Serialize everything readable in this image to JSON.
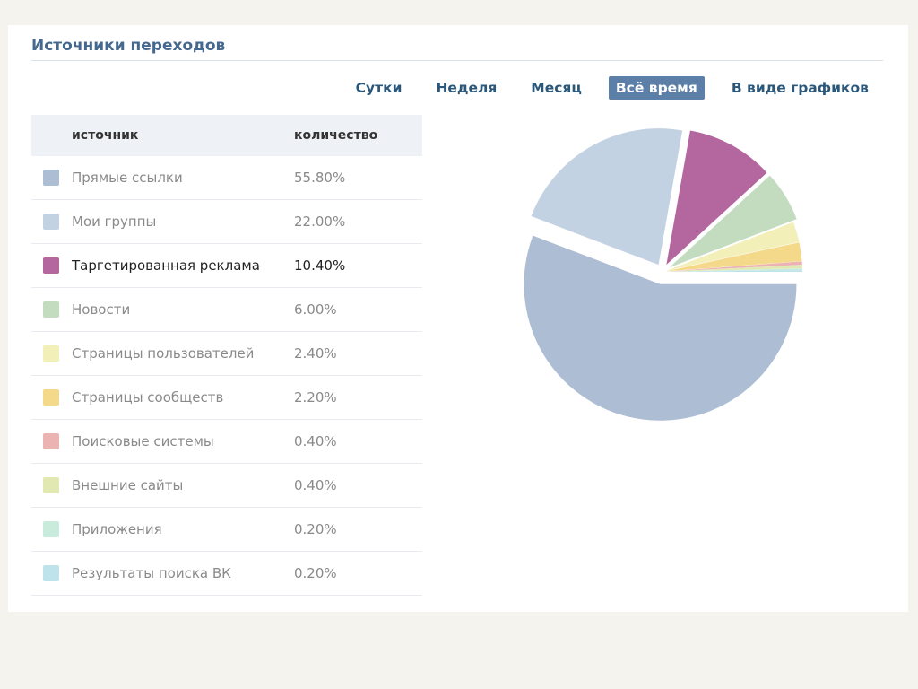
{
  "panel": {
    "title": "Источники переходов"
  },
  "filters": [
    {
      "label": "Сутки",
      "active": false
    },
    {
      "label": "Неделя",
      "active": false
    },
    {
      "label": "Месяц",
      "active": false
    },
    {
      "label": "Всё время",
      "active": true
    },
    {
      "label": "В виде графиков",
      "active": false
    }
  ],
  "table": {
    "headers": {
      "source": "источник",
      "count": "количество"
    }
  },
  "chart_data": {
    "type": "pie",
    "title": "",
    "categories": [
      "Прямые ссылки",
      "Мои группы",
      "Таргетированная реклама",
      "Новости",
      "Страницы пользователей",
      "Страницы сообществ",
      "Поисковые системы",
      "Внешние сайты",
      "Приложения",
      "Результаты поиска ВК"
    ],
    "values": [
      55.8,
      22.0,
      10.4,
      6.0,
      2.4,
      2.2,
      0.4,
      0.4,
      0.2,
      0.2
    ],
    "labels": [
      "55.80%",
      "22.00%",
      "10.40%",
      "6.00%",
      "2.40%",
      "2.20%",
      "0.40%",
      "0.40%",
      "0.20%",
      "0.20%"
    ],
    "colors": [
      "#adbdd3",
      "#c3d2e3",
      "#b4669f",
      "#c3dcc0",
      "#f3efb8",
      "#f5d98a",
      "#ecb3b3",
      "#e2e8b2",
      "#c8ebdb",
      "#bfe3ea"
    ],
    "highlight_index": 2,
    "legend": "left-table"
  }
}
